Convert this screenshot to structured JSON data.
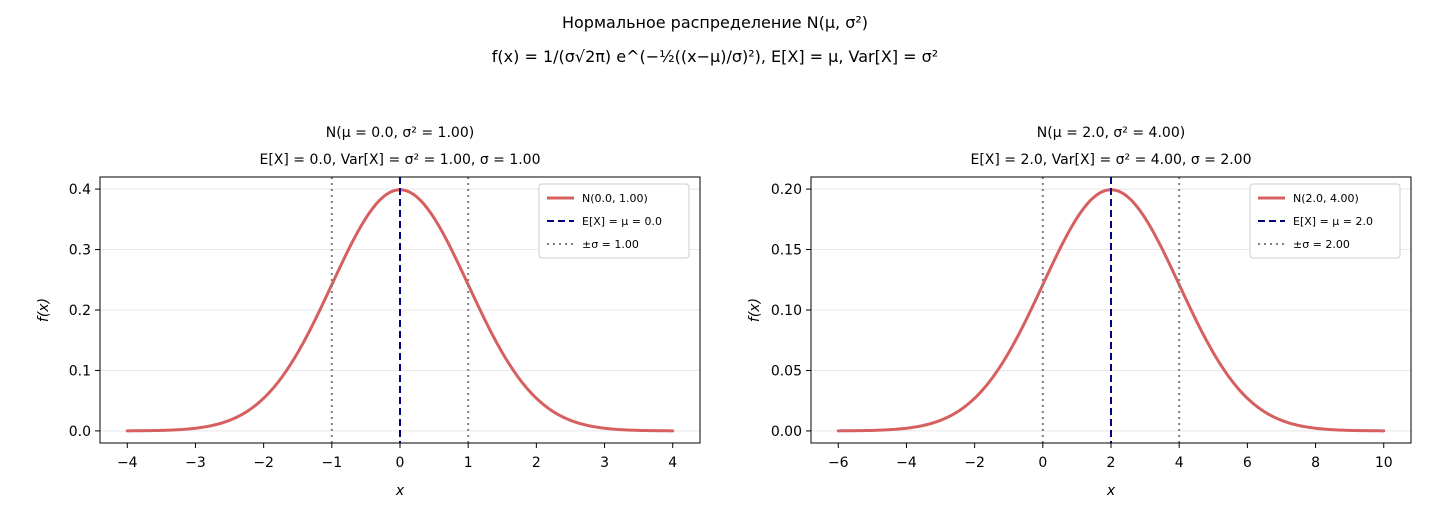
{
  "figure": {
    "title": "Нормальное распределение N(μ,  σ²)",
    "formula": "f(x) = 1/(σ√2π) e^(−½((x−μ)/σ)²),  E[X] = μ,  Var[X] = σ²"
  },
  "colors": {
    "pdf": "#d65f5f",
    "mean": "#000080",
    "sigma": "#808080",
    "grid": "#e8e8e8",
    "axis": "#000000"
  },
  "chart_data": [
    {
      "type": "line",
      "title": "N(μ = 0.0,  σ² = 1.00)",
      "subtitle": "E[X] = 0.0,  Var[X] = σ² = 1.00,  σ = 1.00",
      "xlabel": "x",
      "ylabel": "f(x)",
      "mu": 0.0,
      "sigma": 1.0,
      "variance": 1.0,
      "xlim": [
        -4.4,
        4.4
      ],
      "ylim": [
        -0.02,
        0.42
      ],
      "x_ticks": [
        -4,
        -3,
        -2,
        -1,
        0,
        1,
        2,
        3,
        4
      ],
      "y_ticks": [
        0.0,
        0.1,
        0.2,
        0.3,
        0.4
      ],
      "x_tick_labels": [
        "−4",
        "−3",
        "−2",
        "−1",
        "0",
        "1",
        "2",
        "3",
        "4"
      ],
      "y_tick_labels": [
        "0.0",
        "0.1",
        "0.2",
        "0.3",
        "0.4"
      ],
      "series": [
        {
          "name": "N(0.0,  1.00)",
          "x": [
            -4,
            -3.5,
            -3,
            -2.5,
            -2,
            -1.5,
            -1,
            -0.5,
            0,
            0.5,
            1,
            1.5,
            2,
            2.5,
            3,
            3.5,
            4
          ],
          "y": [
            0.0001,
            0.0009,
            0.0044,
            0.0175,
            0.054,
            0.1295,
            0.242,
            0.3521,
            0.3989,
            0.3521,
            0.242,
            0.1295,
            0.054,
            0.0175,
            0.0044,
            0.0009,
            0.0001
          ]
        }
      ],
      "mean_line": {
        "label": "E[X] = μ = 0.0",
        "x": 0.0
      },
      "sigma_lines": {
        "label": "±σ = 1.00",
        "x": [
          -1.0,
          1.0
        ]
      },
      "grid": "horizontal",
      "legend_position": "top-right"
    },
    {
      "type": "line",
      "title": "N(μ = 2.0,  σ² = 4.00)",
      "subtitle": "E[X] = 2.0,  Var[X] = σ² = 4.00,  σ = 2.00",
      "xlabel": "x",
      "ylabel": "f(x)",
      "mu": 2.0,
      "sigma": 2.0,
      "variance": 4.0,
      "xlim": [
        -6.8,
        10.8
      ],
      "ylim": [
        -0.01,
        0.21
      ],
      "x_ticks": [
        -6,
        -4,
        -2,
        0,
        2,
        4,
        6,
        8,
        10
      ],
      "y_ticks": [
        0.0,
        0.05,
        0.1,
        0.15,
        0.2
      ],
      "x_tick_labels": [
        "−6",
        "−4",
        "−2",
        "0",
        "2",
        "4",
        "6",
        "8",
        "10"
      ],
      "y_tick_labels": [
        "0.00",
        "0.05",
        "0.10",
        "0.15",
        "0.20"
      ],
      "series": [
        {
          "name": "N(2.0,  4.00)",
          "x": [
            -6,
            -5,
            -4,
            -3,
            -2,
            -1,
            0,
            1,
            2,
            3,
            4,
            5,
            6,
            7,
            8,
            9,
            10
          ],
          "y": [
            0.0001,
            0.0004,
            0.0022,
            0.0088,
            0.027,
            0.0648,
            0.121,
            0.176,
            0.1995,
            0.176,
            0.121,
            0.0648,
            0.027,
            0.0088,
            0.0022,
            0.0004,
            0.0001
          ]
        }
      ],
      "mean_line": {
        "label": "E[X] = μ = 2.0",
        "x": 2.0
      },
      "sigma_lines": {
        "label": "±σ = 2.00",
        "x": [
          0.0,
          4.0
        ]
      },
      "grid": "horizontal",
      "legend_position": "top-right"
    }
  ]
}
